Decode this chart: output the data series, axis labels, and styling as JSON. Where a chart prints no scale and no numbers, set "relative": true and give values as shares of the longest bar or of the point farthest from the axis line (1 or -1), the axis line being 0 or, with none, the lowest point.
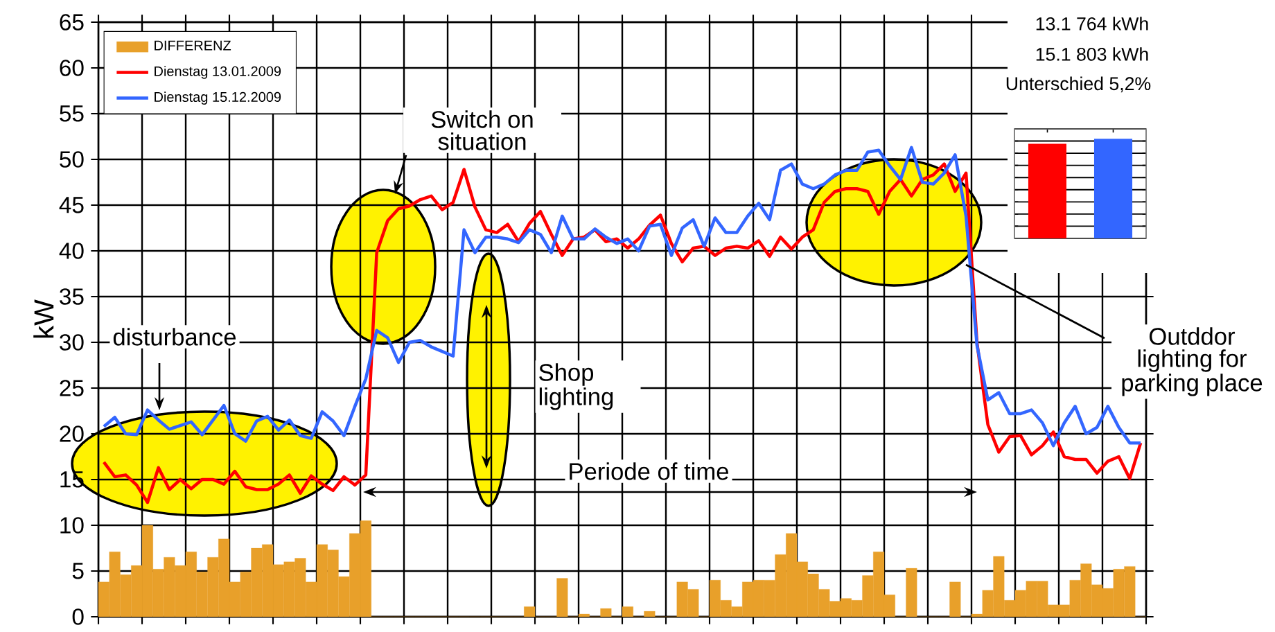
{
  "chart_data": [
    {
      "type": "line",
      "ylabel": "kW",
      "categories": [
        null,
        null,
        null,
        null,
        null,
        null,
        null,
        null,
        null,
        null,
        null,
        null,
        null,
        null,
        null,
        null,
        null,
        null,
        null,
        null,
        null,
        null,
        null,
        null,
        null,
        null,
        null,
        null,
        null,
        null,
        null,
        null,
        null,
        null,
        null,
        null,
        null,
        null,
        null,
        null,
        null,
        null,
        null,
        null,
        null,
        null,
        null,
        null,
        null,
        null,
        null,
        null,
        null,
        null,
        null,
        null,
        null,
        null,
        null,
        null,
        null,
        null,
        null,
        null,
        null,
        null,
        null,
        null,
        null,
        null,
        null,
        null,
        null,
        null,
        null,
        null,
        null,
        null,
        null,
        null,
        null,
        null,
        null,
        null,
        null,
        null,
        null,
        null,
        null,
        null,
        null,
        null,
        null,
        null,
        null,
        null
      ],
      "ylim": [
        0,
        65
      ],
      "yticks": [
        0,
        5,
        10,
        15,
        20,
        25,
        30,
        35,
        40,
        45,
        50,
        55,
        60,
        65
      ],
      "grid": true,
      "legend": "top left",
      "marker": "none",
      "line_style": "solid",
      "series": [
        {
          "name": "DIFFERENZ",
          "type": "bar",
          "color": "#e8a02a",
          "values": [
            3.8,
            7.1,
            4.6,
            5.6,
            10,
            5.2,
            6.5,
            5.6,
            7.1,
            4.9,
            6.5,
            8.5,
            3.8,
            4.9,
            7.5,
            7.9,
            5.7,
            6,
            6.4,
            3.8,
            7.9,
            7.3,
            4.4,
            9.1,
            10.5,
            0,
            0,
            0,
            0,
            0,
            0,
            0,
            0,
            0,
            0,
            0,
            0,
            0,
            0,
            1.1,
            0,
            0,
            4.2,
            0,
            0.3,
            0,
            0.9,
            0,
            1.1,
            0,
            0.6,
            0,
            0,
            3.8,
            3,
            0,
            4,
            1.8,
            1.1,
            3.8,
            4,
            4,
            6.8,
            9.1,
            6,
            4.7,
            3,
            1.7,
            2,
            1.8,
            4.5,
            7.1,
            2.4,
            0,
            5.3,
            0,
            0,
            0,
            3.8,
            0,
            0.3,
            2.9,
            6.6,
            1.8,
            2.9,
            3.9,
            3.9,
            1.3,
            1.3,
            4,
            5.8,
            3.5,
            3.1,
            5.2,
            5.5,
            0
          ]
        },
        {
          "name": "Dienstag 13.01.2009",
          "type": "line",
          "color": "#ff0000",
          "values": [
            16.9,
            15.3,
            15.5,
            14.4,
            12.5,
            16.3,
            13.9,
            15,
            14,
            15,
            15,
            14.5,
            15.9,
            14.2,
            13.9,
            13.9,
            14.5,
            15.5,
            13.5,
            15.4,
            14.5,
            13.8,
            15.3,
            14.4,
            15.5,
            39.8,
            43.3,
            44.6,
            44.9,
            45.6,
            46,
            44.5,
            45.3,
            48.9,
            44.8,
            42.3,
            42,
            42.9,
            41,
            43,
            44.3,
            41.8,
            39.5,
            41.3,
            41.5,
            42.3,
            41,
            41.3,
            40.3,
            41.3,
            42.8,
            43.9,
            40.8,
            38.8,
            40.3,
            40.5,
            39.5,
            40.3,
            40.5,
            40.3,
            41.1,
            39.4,
            41.5,
            40.2,
            41.5,
            42.3,
            45.3,
            46.5,
            46.8,
            46.8,
            46.5,
            44,
            46.5,
            47.8,
            46,
            47.8,
            48.3,
            49.5,
            46.5,
            48.5,
            30,
            21,
            18,
            19.7,
            19.8,
            17.7,
            18.7,
            20.2,
            17.5,
            17.2,
            17.2,
            15.7,
            17,
            17.5,
            15.1,
            19
          ]
        },
        {
          "name": "Dienstag 15.12.2009",
          "type": "line",
          "color": "#3366ff",
          "values": [
            20.8,
            21.8,
            20,
            19.9,
            22.6,
            21.5,
            20.5,
            20.9,
            21.3,
            19.9,
            21.5,
            23.1,
            20,
            19.2,
            21.4,
            21.9,
            20.4,
            21.5,
            19.8,
            19.5,
            22.4,
            21.4,
            19.8,
            23,
            26,
            31.3,
            30.5,
            27.8,
            30,
            30.2,
            29.5,
            29,
            28.5,
            42.3,
            39.8,
            41.5,
            41.5,
            41.3,
            40.9,
            42.3,
            41.8,
            39.8,
            43.8,
            41.3,
            41.3,
            42.4,
            41.5,
            40.8,
            41.3,
            40,
            42.7,
            42.9,
            39.5,
            42.5,
            43.4,
            40.5,
            43.6,
            42,
            42,
            43.8,
            45.2,
            43.4,
            48.8,
            49.5,
            47.3,
            46.8,
            47.3,
            48.3,
            48.8,
            48.8,
            50.8,
            51,
            49.3,
            47.8,
            51.3,
            47.5,
            47.3,
            48.5,
            50.5,
            43.8,
            29.7,
            23.7,
            24.5,
            22.2,
            22.2,
            22.6,
            21.2,
            18.7,
            21.2,
            23,
            20,
            20.7,
            23,
            20.7,
            19,
            19
          ]
        }
      ],
      "annotations": [
        "disturbance",
        "Switch on situation",
        "Shop lighting",
        "Periode of time",
        "Outddor lighting for parking place"
      ]
    },
    {
      "type": "bar",
      "categories": [
        null,
        null
      ],
      "values": [
        0.95,
        1
      ],
      "colors": [
        "#ff0000",
        "#3366ff"
      ],
      "relative": true,
      "grid": true,
      "annotations": [
        "13.1 764 kWh",
        "15.1 803 kWh",
        "Unterschied 5,2%"
      ]
    }
  ]
}
